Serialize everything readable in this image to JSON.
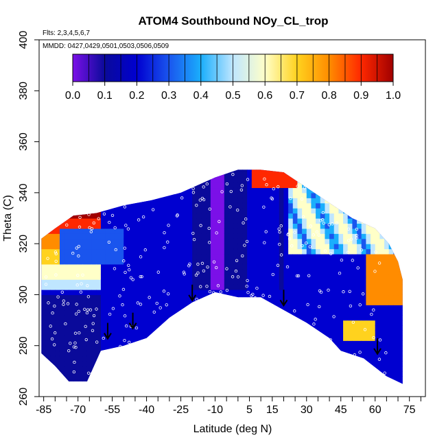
{
  "chart_data": {
    "type": "heatmap",
    "title": "ATOM4 Southbound NOy_CL_trop",
    "flights_note": "Flts: 2,3,4,5,6,7",
    "dates_note": "MMDD: 0427,0429,0501,0503,0506,0509",
    "xlabel": "Latitude (deg N)",
    "ylabel": "Theta (C)",
    "xlim": [
      -87,
      82
    ],
    "ylim": [
      260,
      400
    ],
    "x_ticks": [
      -85,
      -70,
      -55,
      -40,
      -25,
      -10,
      5,
      15,
      30,
      45,
      60,
      75
    ],
    "x_minor_step": 5,
    "y_ticks": [
      260,
      280,
      300,
      320,
      340,
      360,
      380,
      400
    ],
    "colorbar": {
      "ticks": [
        "0.0",
        "0.1",
        "0.2",
        "0.3",
        "0.4",
        "0.5",
        "0.6",
        "0.7",
        "0.8",
        "0.9",
        "1.0"
      ],
      "colors": [
        "#7b10e8",
        "#0a0a9a",
        "#0000d0",
        "#1a55ee",
        "#1aaefc",
        "#bfe6ff",
        "#ffffc8",
        "#ffd21e",
        "#ff8c00",
        "#ff2800",
        "#a00000"
      ]
    },
    "series": [
      {
        "lon_upper_boundary": [
          [
            -86,
            322
          ],
          [
            -80,
            326
          ],
          [
            -72,
            331
          ],
          [
            -62,
            332
          ],
          [
            -50,
            335
          ],
          [
            -38,
            337
          ],
          [
            -25,
            340
          ],
          [
            -10,
            346
          ],
          [
            0,
            349
          ],
          [
            10,
            349
          ],
          [
            20,
            348
          ],
          [
            30,
            342
          ],
          [
            40,
            336
          ],
          [
            50,
            330
          ],
          [
            60,
            326
          ],
          [
            66,
            320
          ],
          [
            70,
            313
          ],
          [
            72,
            306
          ]
        ],
        "lower_boundary": [
          [
            -86,
            277
          ],
          [
            -80,
            272
          ],
          [
            -74,
            266
          ],
          [
            -66,
            266
          ],
          [
            -60,
            278
          ],
          [
            -50,
            280
          ],
          [
            -40,
            283
          ],
          [
            -30,
            291
          ],
          [
            -20,
            297
          ],
          [
            -10,
            301
          ],
          [
            0,
            299
          ],
          [
            10,
            299
          ],
          [
            20,
            294
          ],
          [
            30,
            289
          ],
          [
            40,
            283
          ],
          [
            45,
            278
          ],
          [
            55,
            275
          ],
          [
            65,
            268
          ],
          [
            72,
            265
          ]
        ]
      }
    ],
    "arrows_lat": [
      -57,
      -46,
      -20,
      20,
      61
    ],
    "high_value_regions": [
      {
        "label": "yellow-band",
        "value": 0.65
      },
      {
        "label": "red-band",
        "value": 0.9
      }
    ]
  }
}
